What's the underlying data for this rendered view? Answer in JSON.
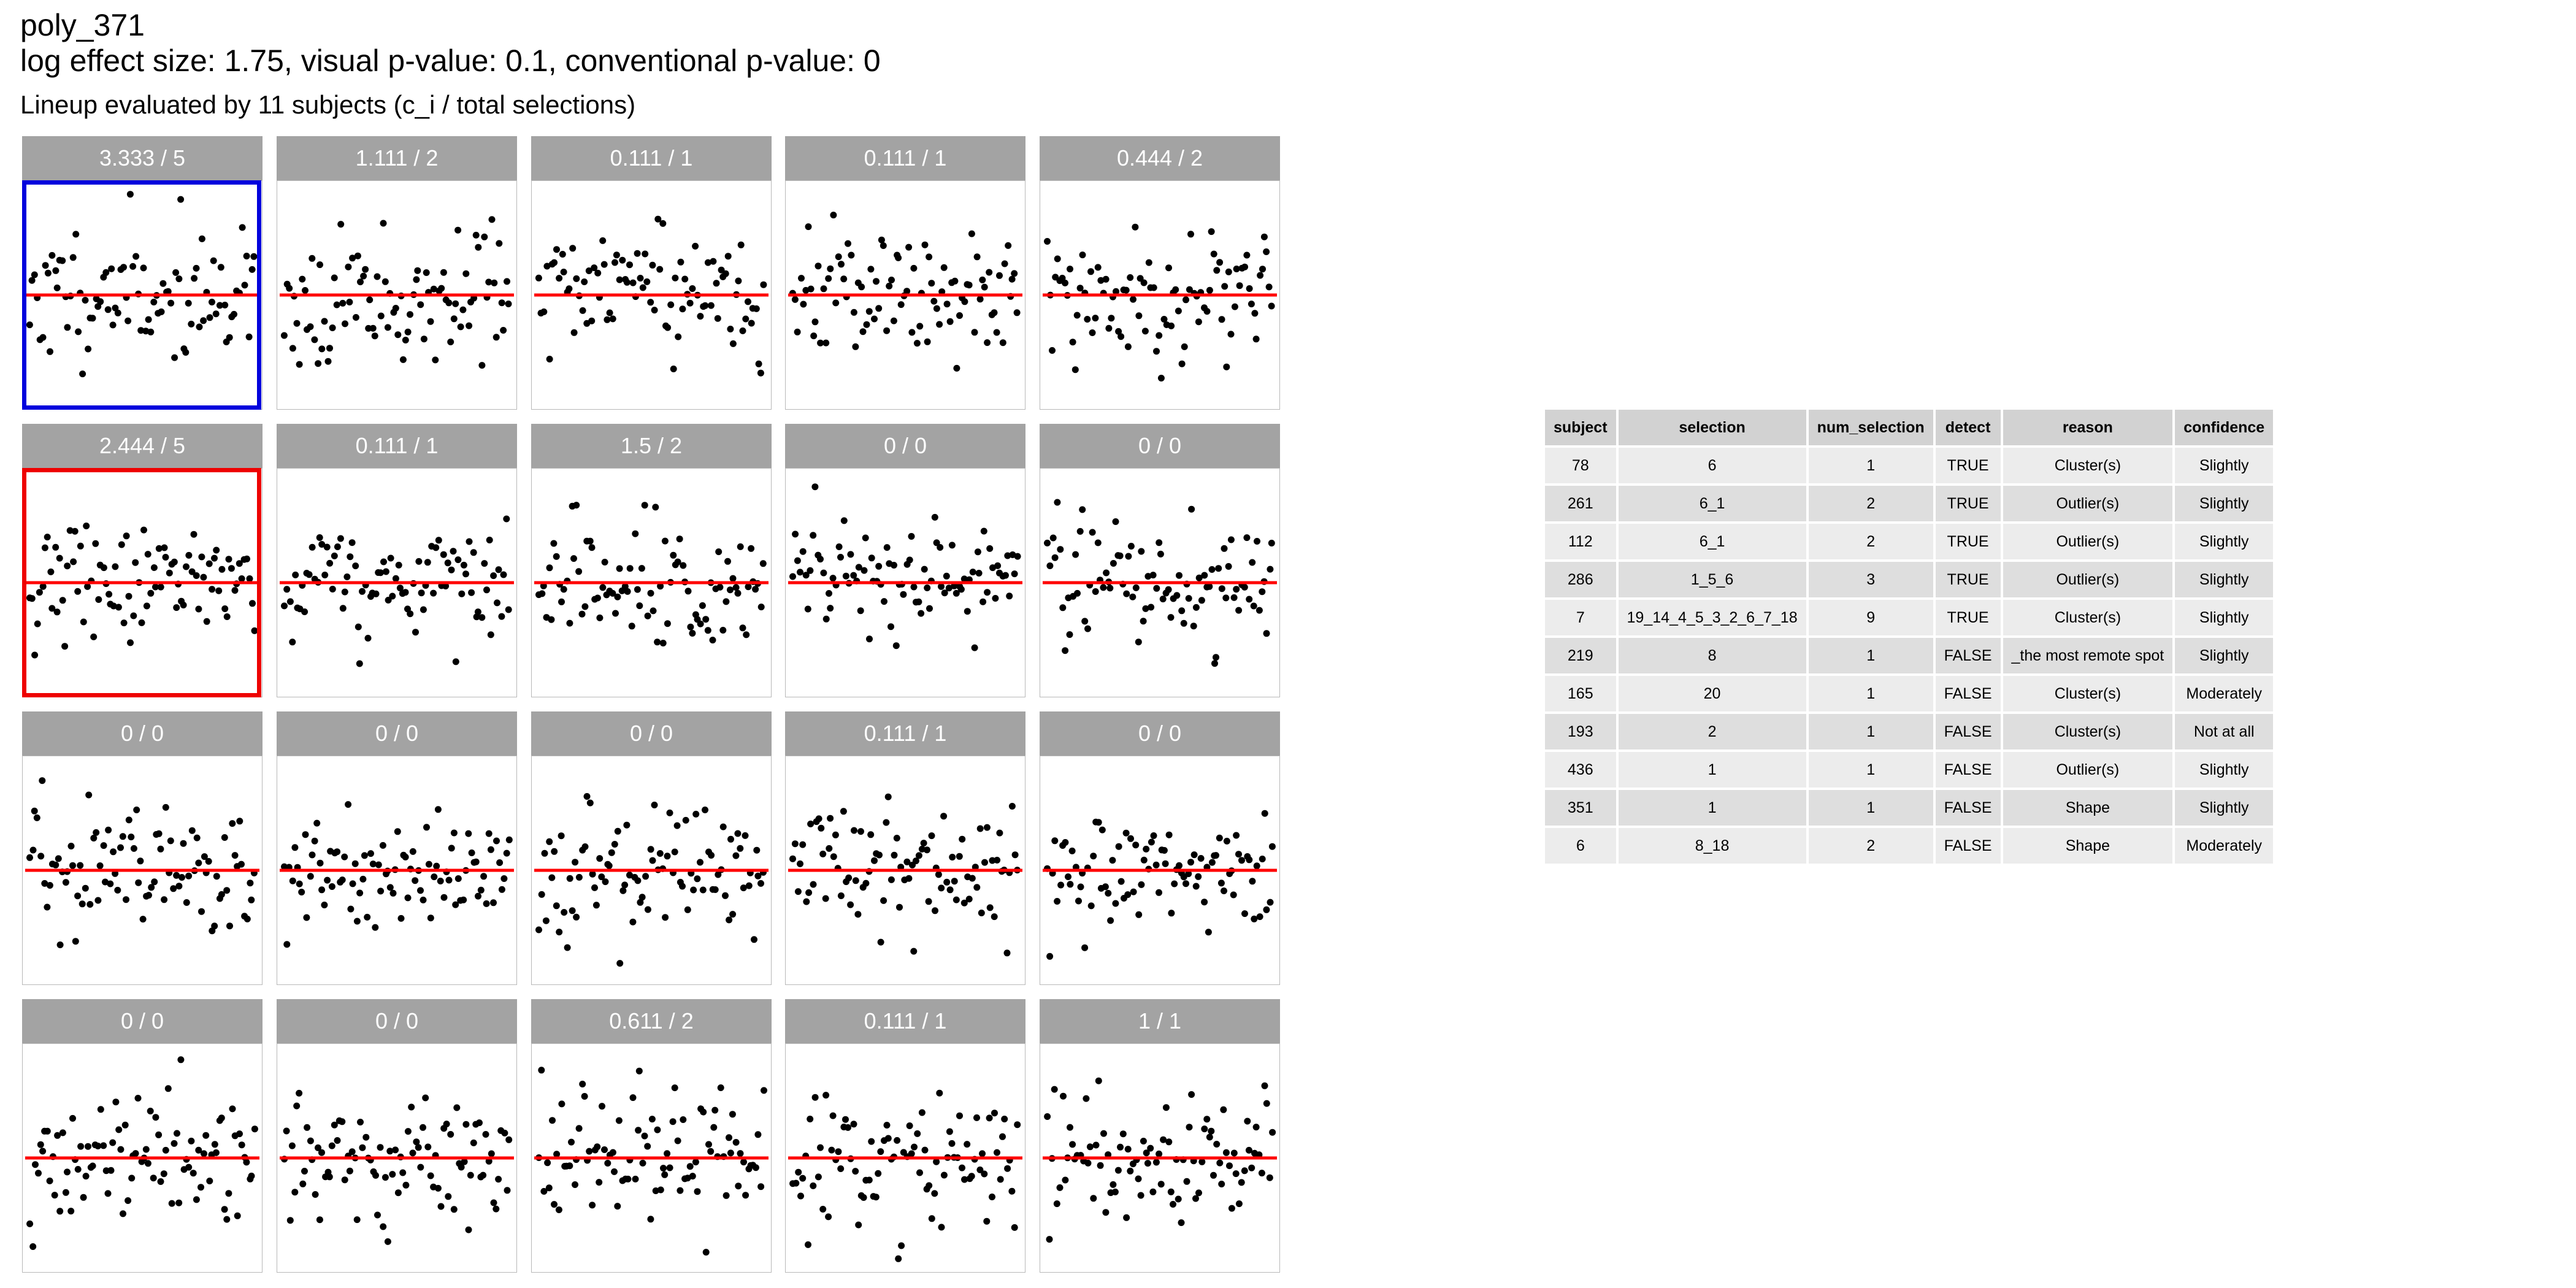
{
  "header": {
    "title": "poly_371",
    "subtitle": "log effect size: 1.75, visual p-value: 0.1, conventional p-value: 0",
    "caption": "Lineup evaluated by 11 subjects (c_i / total selections)"
  },
  "colors": {
    "strip": "#a3a3a3",
    "strip_text": "#ffffff",
    "ref_line": "#ff0000",
    "point": "#000000",
    "highlight_blue": "#0000dd",
    "highlight_red": "#ee0000"
  },
  "chart_data": {
    "type": "scatter",
    "layout": "lineup 4x5 small multiples",
    "reference_line": {
      "y": 0,
      "color": "red"
    },
    "ylim": [
      -3,
      3
    ],
    "xlim": [
      0,
      1
    ],
    "panels": [
      {
        "label": "3.333 / 5",
        "highlight": "blue",
        "seed": 11
      },
      {
        "label": "1.111 / 2",
        "highlight": null,
        "seed": 23
      },
      {
        "label": "0.111 / 1",
        "highlight": null,
        "seed": 37
      },
      {
        "label": "0.111 / 1",
        "highlight": null,
        "seed": 41
      },
      {
        "label": "0.444 / 2",
        "highlight": null,
        "seed": 53
      },
      {
        "label": "2.444 / 5",
        "highlight": "red",
        "seed": 67
      },
      {
        "label": "0.111 / 1",
        "highlight": null,
        "seed": 71
      },
      {
        "label": "1.5 / 2",
        "highlight": null,
        "seed": 83
      },
      {
        "label": "0 / 0",
        "highlight": null,
        "seed": 97
      },
      {
        "label": "0 / 0",
        "highlight": null,
        "seed": 101
      },
      {
        "label": "0 / 0",
        "highlight": null,
        "seed": 113
      },
      {
        "label": "0 / 0",
        "highlight": null,
        "seed": 127
      },
      {
        "label": "0 / 0",
        "highlight": null,
        "seed": 131
      },
      {
        "label": "0.111 / 1",
        "highlight": null,
        "seed": 149
      },
      {
        "label": "0 / 0",
        "highlight": null,
        "seed": 151
      },
      {
        "label": "0 / 0",
        "highlight": null,
        "seed": 163
      },
      {
        "label": "0 / 0",
        "highlight": null,
        "seed": 173
      },
      {
        "label": "0.611 / 2",
        "highlight": null,
        "seed": 181
      },
      {
        "label": "0.111 / 1",
        "highlight": null,
        "seed": 191
      },
      {
        "label": "1 / 1",
        "highlight": null,
        "seed": 199
      }
    ]
  },
  "table": {
    "columns": [
      "subject",
      "selection",
      "num_selection",
      "detect",
      "reason",
      "confidence"
    ],
    "rows": [
      [
        "78",
        "6",
        "1",
        "TRUE",
        "Cluster(s)",
        "Slightly"
      ],
      [
        "261",
        "6_1",
        "2",
        "TRUE",
        "Outlier(s)",
        "Slightly"
      ],
      [
        "112",
        "6_1",
        "2",
        "TRUE",
        "Outlier(s)",
        "Slightly"
      ],
      [
        "286",
        "1_5_6",
        "3",
        "TRUE",
        "Outlier(s)",
        "Slightly"
      ],
      [
        "7",
        "19_14_4_5_3_2_6_7_18",
        "9",
        "TRUE",
        "Cluster(s)",
        "Slightly"
      ],
      [
        "219",
        "8",
        "1",
        "FALSE",
        "_the most remote spot",
        "Slightly"
      ],
      [
        "165",
        "20",
        "1",
        "FALSE",
        "Cluster(s)",
        "Moderately"
      ],
      [
        "193",
        "2",
        "1",
        "FALSE",
        "Cluster(s)",
        "Not at all"
      ],
      [
        "436",
        "1",
        "1",
        "FALSE",
        "Outlier(s)",
        "Slightly"
      ],
      [
        "351",
        "1",
        "1",
        "FALSE",
        "Shape",
        "Slightly"
      ],
      [
        "6",
        "8_18",
        "2",
        "FALSE",
        "Shape",
        "Moderately"
      ]
    ]
  }
}
